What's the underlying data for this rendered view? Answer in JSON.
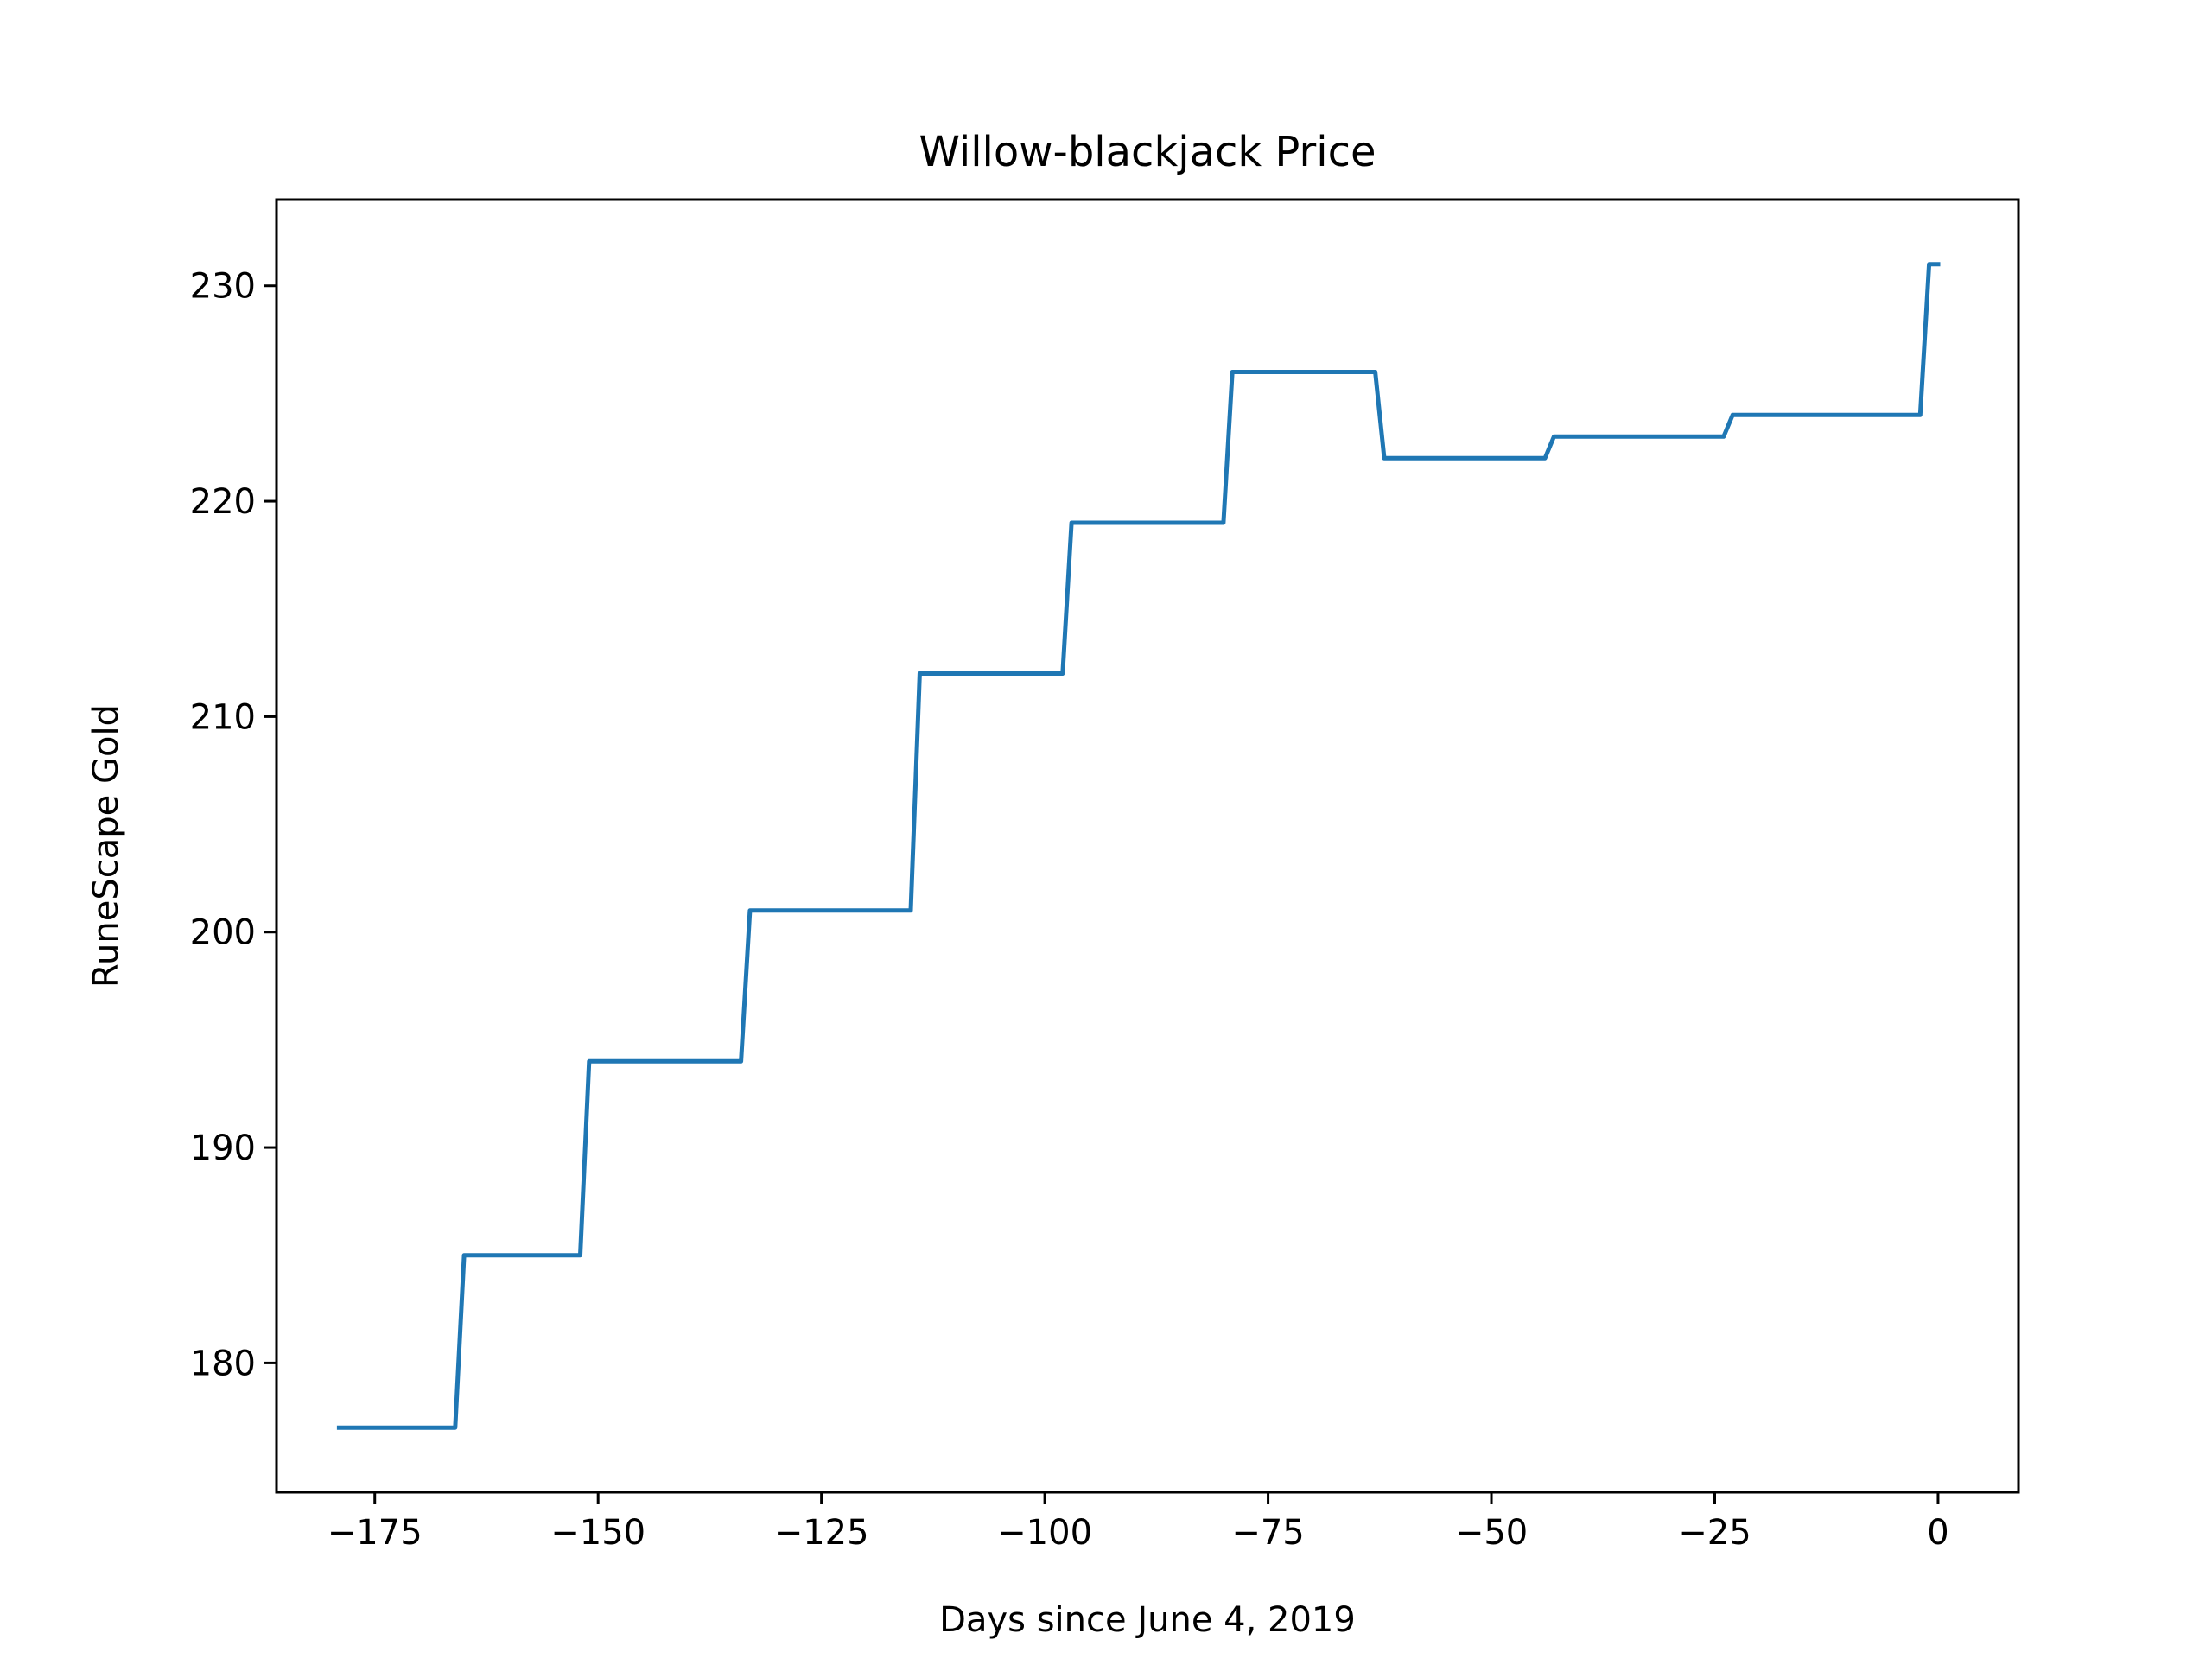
{
  "chart_data": {
    "type": "line",
    "title": "Willow-blackjack Price",
    "xlabel": "Days since June 4, 2019",
    "ylabel": "RuneScape Gold",
    "xlim": [
      -186,
      9
    ],
    "ylim": [
      174,
      234
    ],
    "x_ticks": [
      -175,
      -150,
      -125,
      -100,
      -75,
      -50,
      -25,
      0
    ],
    "x_tick_labels": [
      "−175",
      "−150",
      "−125",
      "−100",
      "−75",
      "−50",
      "−25",
      "0"
    ],
    "y_ticks": [
      180,
      190,
      200,
      210,
      220,
      230
    ],
    "y_tick_labels": [
      "180",
      "190",
      "200",
      "210",
      "220",
      "230"
    ],
    "grid": false,
    "legend": false,
    "series": [
      {
        "color": "#1f77b4",
        "x": [
          -179,
          -166,
          -165,
          -152,
          -151,
          -134,
          -133,
          -115,
          -114,
          -98,
          -97,
          -80,
          -79,
          -63,
          -62,
          -44,
          -43,
          -24,
          -23,
          -2,
          -1,
          0
        ],
        "y": [
          177,
          177,
          185,
          185,
          194,
          194,
          201,
          201,
          212,
          212,
          219,
          219,
          226,
          226,
          222,
          222,
          223,
          223,
          224,
          224,
          231,
          231
        ]
      }
    ]
  }
}
